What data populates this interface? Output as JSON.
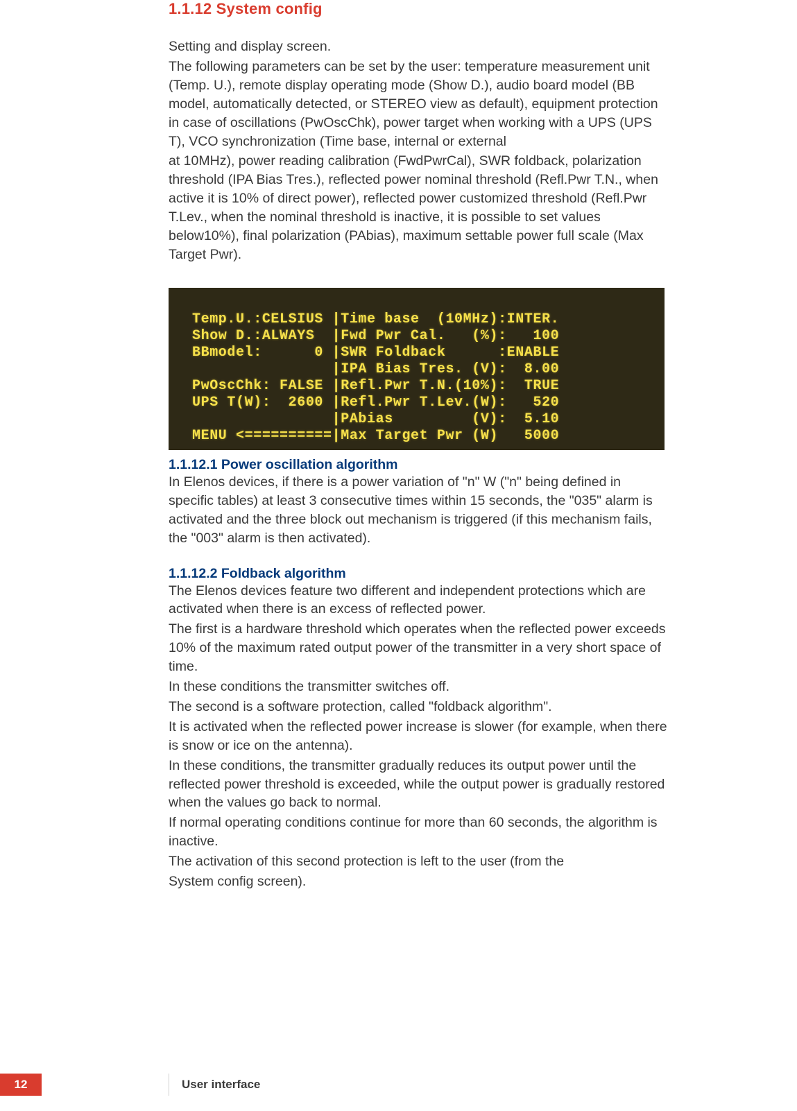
{
  "section_title": "1.1.12 System config",
  "intro": {
    "line1": "Setting and display screen.",
    "line2": "The following parameters can be set by the user: temperature measurement unit (Temp. U.), remote display operating mode (Show D.), audio board model (BB model, automatically detected, or STEREO view as default), equipment protection in case of oscillations (PwOscChk), power target when working with a UPS (UPS T), VCO synchronization (Time base, internal or external",
    "line3": "at 10MHz), power reading calibration (FwdPwrCal), SWR foldback, polarization threshold (IPA Bias Tres.), reflected power nominal threshold (Refl.Pwr T.N., when active it is 10% of direct power), reflected power customized threshold (Refl.Pwr T.Lev., when  the nominal threshold is inactive, it is possible to set values below10%), final polarization (PAbias), maximum settable power full scale (Max Target Pwr)."
  },
  "lcd": {
    "background_color": "#2e2916",
    "text_color": "#f7e14a",
    "font_family": "Courier New",
    "rows": {
      "r1": "Temp.U.:CELSIUS |Time base  (10MHz):INTER.",
      "r2": "Show D.:ALWAYS  |Fwd Pwr Cal.   (%):   100",
      "r3": "BBmodel:      0 |SWR Foldback      :ENABLE",
      "r4": "                |IPA Bias Tres. (V):  8.00",
      "r5": "PwOscChk: FALSE |Refl.Pwr T.N.(10%):  TRUE",
      "r6": "UPS T(W):  2600 |Refl.Pwr T.Lev.(W):   520",
      "r7": "                |PAbias         (V):  5.10",
      "r8": "MENU <==========|Max Target Pwr (W)   5000"
    },
    "values": {
      "temp_unit": "CELSIUS",
      "show_d": "ALWAYS",
      "bb_model": 0,
      "pw_osc_chk": "FALSE",
      "ups_t_w": 2600,
      "time_base_10mhz": "INTER.",
      "fwd_pwr_cal_pct": 100,
      "swr_foldback": "ENABLE",
      "ipa_bias_tres_v": 8.0,
      "refl_pwr_tn_10pct": "TRUE",
      "refl_pwr_tlev_w": 520,
      "pa_bias_v": 5.1,
      "max_target_pwr_w": 5000
    }
  },
  "sub1": {
    "title": "1.1.12.1 Power oscillation algorithm",
    "body": "In Elenos devices, if there is a power variation of \"n\" W (\"n\" being defined in specific tables) at least 3 consecutive times within 15 seconds, the \"035\" alarm is activated and the three block out mechanism is triggered (if this mechanism fails, the \"003\" alarm is then activated)."
  },
  "sub2": {
    "title": "1.1.12.2 Foldback algorithm",
    "p1": "The Elenos devices feature two different and independent protections which are activated when there is an excess of reflected power.",
    "p2": "The first is a hardware threshold which operates when the reflected power exceeds 10% of the maximum rated output power of the transmitter in a very short space of time.",
    "p3": "In these conditions the transmitter switches off.",
    "p4": "The second is a software protection, called \"foldback algorithm\".",
    "p5": "It is activated when the reflected power increase is slower (for example, when there is snow or ice on the antenna).",
    "p6": "In these conditions, the transmitter gradually reduces its output power until the reflected power threshold is exceeded, while the output power is gradually restored when the values go back to normal.",
    "p7": "If normal operating conditions continue for more than 60 seconds, the algorithm is inactive.",
    "p8": "The activation of this second protection is left to the user (from the",
    "p9": "System config screen)."
  },
  "footer": {
    "page": "12",
    "label": "User interface",
    "accent_color": "#d93c2e"
  }
}
